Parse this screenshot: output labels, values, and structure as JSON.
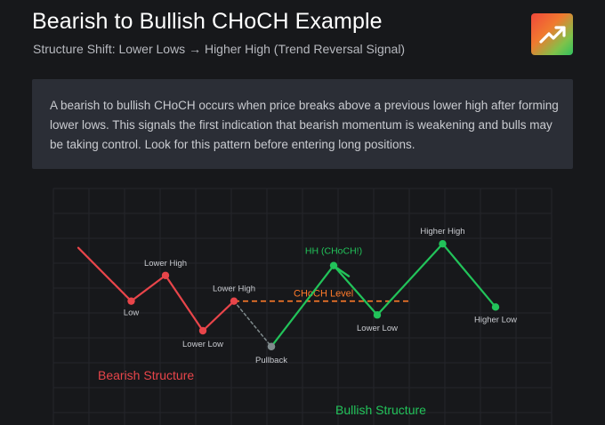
{
  "header": {
    "title": "Bearish to Bullish CHoCH Example",
    "subtitle": "Structure Shift: Lower Lows → Higher High (Trend Reversal Signal)",
    "logo_icon": "trending-up-icon"
  },
  "description": "A bearish to bullish CHoCH occurs when price breaks above a previous lower high after forming lower lows. This signals the first indication that bearish momentum is weakening and bulls may be taking control. Look for this pattern before entering long positions.",
  "chart_data": {
    "type": "line",
    "title": "",
    "xlabel": "",
    "ylabel": "",
    "grid": true,
    "xlim": [
      0,
      16
    ],
    "ylim": [
      0,
      9
    ],
    "colors": {
      "bearish": "#e8454a",
      "bullish": "#22c35a",
      "choch_level": "#ff7a2a",
      "pullback": "#7f8a8c"
    },
    "series": [
      {
        "name": "Bearish Structure",
        "color": "#e8454a",
        "points": [
          {
            "x": 0.8,
            "y": 6.0,
            "label": ""
          },
          {
            "x": 2.5,
            "y": 3.3,
            "label": "Low"
          },
          {
            "x": 3.6,
            "y": 4.6,
            "label": "Lower High"
          },
          {
            "x": 4.8,
            "y": 1.8,
            "label": "Lower Low"
          },
          {
            "x": 5.8,
            "y": 3.3,
            "label": "Lower High"
          }
        ]
      },
      {
        "name": "Pullback",
        "color": "#7f8a8c",
        "dashed": true,
        "points": [
          {
            "x": 5.8,
            "y": 3.3,
            "label": ""
          },
          {
            "x": 7.0,
            "y": 1.0,
            "label": "Pullback"
          }
        ]
      },
      {
        "name": "Bullish Structure",
        "color": "#22c35a",
        "points": [
          {
            "x": 7.0,
            "y": 1.0,
            "label": ""
          },
          {
            "x": 9.0,
            "y": 5.1,
            "label": "HH (CHoCH!)"
          },
          {
            "x": 10.4,
            "y": 2.6,
            "label": "Lower Low"
          },
          {
            "x": 12.5,
            "y": 6.2,
            "label": "Higher High"
          },
          {
            "x": 14.2,
            "y": 3.0,
            "label": "Higher Low"
          }
        ]
      }
    ],
    "level": {
      "label": "CHoCH Level",
      "y": 3.3,
      "x_start": 5.8,
      "x_end": 11.5
    },
    "annotations": [
      "Bearish Structure",
      "Bullish Structure"
    ]
  }
}
